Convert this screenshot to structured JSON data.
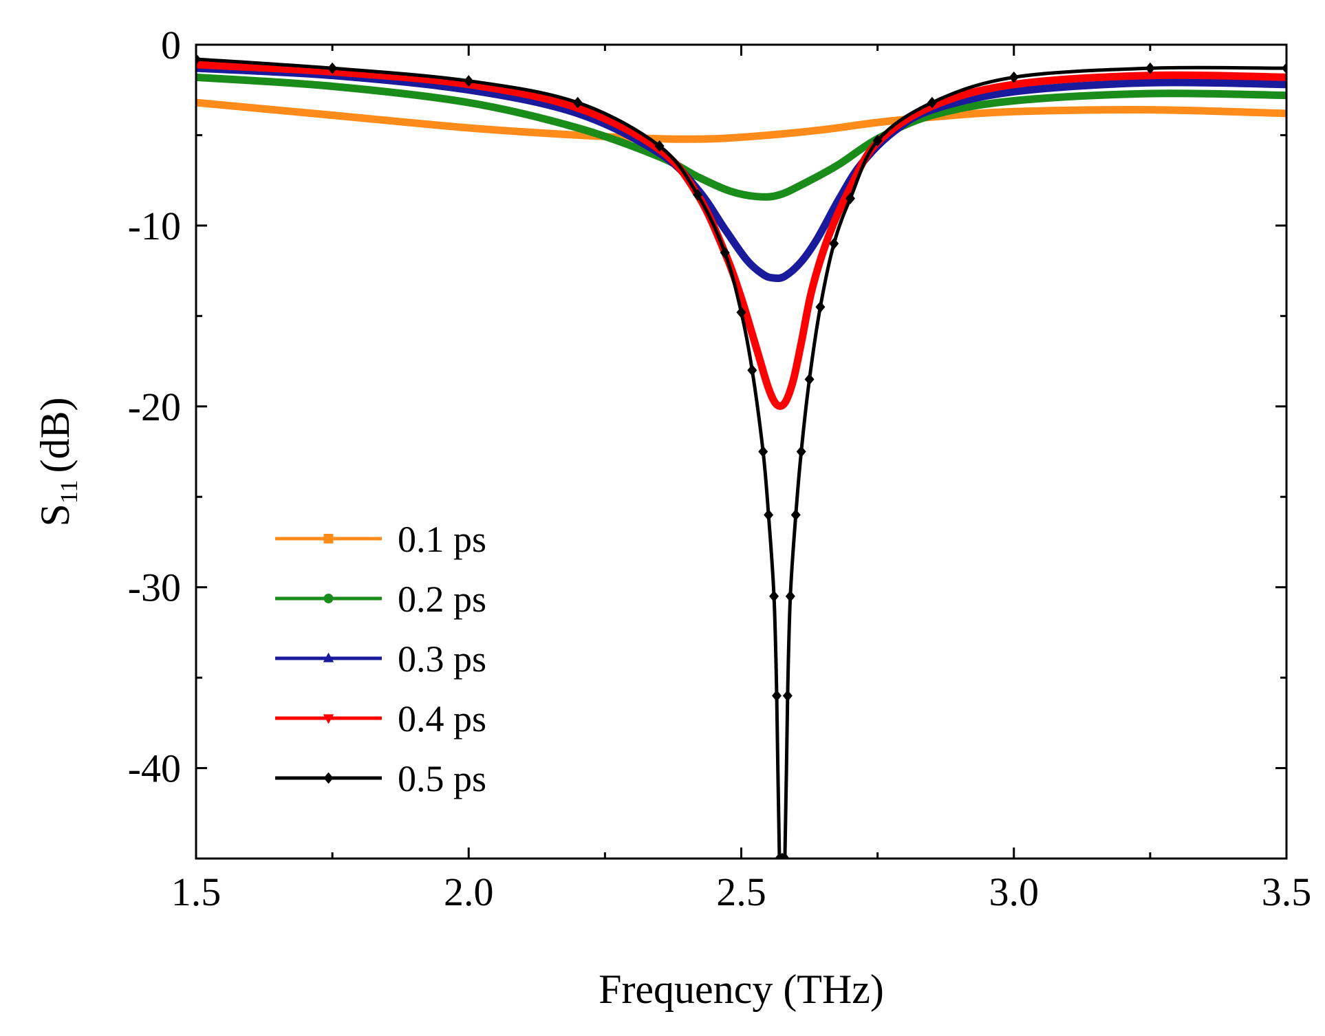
{
  "chart_data": {
    "type": "line",
    "xlabel": "Frequency (THz)",
    "ylabel": {
      "base": "S",
      "subscript": "11",
      "unit": "(dB)"
    },
    "xlim": [
      1.5,
      3.5
    ],
    "ylim": [
      -45,
      0
    ],
    "x_ticks": [
      1.5,
      2.0,
      2.5,
      3.0,
      3.5
    ],
    "x_tick_labels": [
      "1.5",
      "2.0",
      "2.5",
      "3.0",
      "3.5"
    ],
    "x_minor_step": 0.25,
    "y_ticks": [
      0,
      -10,
      -20,
      -30,
      -40
    ],
    "y_tick_labels": [
      "0",
      "-10",
      "-20",
      "-30",
      "-40"
    ],
    "y_minor_step": 5,
    "grid": false,
    "legend_position": "bottom-left",
    "series": [
      {
        "name": "0.1 ps",
        "color": "#ff8c1a",
        "marker": "square",
        "x": [
          1.5,
          1.75,
          2.0,
          2.2,
          2.35,
          2.45,
          2.55,
          2.65,
          2.75,
          2.85,
          3.0,
          3.25,
          3.5
        ],
        "y": [
          -3.2,
          -3.9,
          -4.6,
          -5.0,
          -5.2,
          -5.2,
          -5.0,
          -4.7,
          -4.3,
          -4.0,
          -3.7,
          -3.6,
          -3.8
        ]
      },
      {
        "name": "0.2 ps",
        "color": "#1a8c1a",
        "marker": "circle",
        "x": [
          1.5,
          1.75,
          2.0,
          2.2,
          2.35,
          2.42,
          2.48,
          2.53,
          2.57,
          2.62,
          2.68,
          2.75,
          2.85,
          3.0,
          3.25,
          3.5
        ],
        "y": [
          -1.8,
          -2.3,
          -3.2,
          -4.6,
          -6.2,
          -7.3,
          -8.1,
          -8.4,
          -8.3,
          -7.6,
          -6.6,
          -5.2,
          -3.9,
          -3.1,
          -2.7,
          -2.8
        ]
      },
      {
        "name": "0.3 ps",
        "color": "#1a1a9c",
        "marker": "triangle-up",
        "x": [
          1.5,
          1.75,
          2.0,
          2.2,
          2.35,
          2.42,
          2.47,
          2.51,
          2.54,
          2.56,
          2.58,
          2.61,
          2.64,
          2.68,
          2.72,
          2.78,
          2.85,
          3.0,
          3.25,
          3.5
        ],
        "y": [
          -1.3,
          -1.7,
          -2.5,
          -3.8,
          -6.0,
          -8.0,
          -10.2,
          -11.9,
          -12.7,
          -12.9,
          -12.8,
          -12.0,
          -10.7,
          -8.5,
          -6.6,
          -4.8,
          -3.6,
          -2.6,
          -2.1,
          -2.2
        ],
        "__fill_note": ""
      },
      {
        "name": "0.4 ps",
        "color": "#ff0000",
        "marker": "triangle-down",
        "x": [
          1.5,
          1.75,
          2.0,
          2.2,
          2.35,
          2.42,
          2.47,
          2.5,
          2.53,
          2.55,
          2.565,
          2.58,
          2.595,
          2.61,
          2.63,
          2.66,
          2.7,
          2.75,
          2.85,
          3.0,
          3.25,
          3.5
        ],
        "y": [
          -1.1,
          -1.5,
          -2.2,
          -3.5,
          -5.8,
          -8.3,
          -11.5,
          -14.0,
          -17.0,
          -19.0,
          -19.9,
          -19.8,
          -18.6,
          -16.5,
          -13.5,
          -10.6,
          -7.9,
          -5.4,
          -3.4,
          -2.2,
          -1.7,
          -1.8
        ]
      },
      {
        "name": "0.5 ps",
        "color": "#000000",
        "marker": "diamond",
        "x": [
          1.5,
          1.75,
          2.0,
          2.2,
          2.35,
          2.42,
          2.47,
          2.5,
          2.52,
          2.54,
          2.55,
          2.56,
          2.565,
          2.57,
          2.575,
          2.58,
          2.585,
          2.59,
          2.6,
          2.61,
          2.625,
          2.645,
          2.67,
          2.7,
          2.75,
          2.85,
          3.0,
          3.25,
          3.5
        ],
        "y": [
          -0.8,
          -1.3,
          -2.0,
          -3.2,
          -5.6,
          -8.3,
          -11.5,
          -14.8,
          -18.0,
          -22.5,
          -26.0,
          -30.5,
          -36.0,
          -45.0,
          -45.0,
          -45.0,
          -36.0,
          -30.5,
          -26.0,
          -22.5,
          -18.5,
          -14.5,
          -11.0,
          -8.5,
          -5.3,
          -3.2,
          -1.8,
          -1.3,
          -1.3
        ]
      }
    ]
  }
}
